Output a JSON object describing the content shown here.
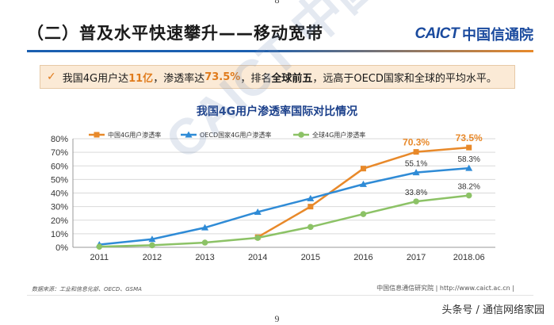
{
  "page": {
    "top_number": "8",
    "bottom_number": "9"
  },
  "header": {
    "title": "（二）普及水平快速攀升——移动宽带",
    "logo_en": "CAICT",
    "logo_cn": "中国信通院"
  },
  "highlight": {
    "check": "✓",
    "t1": "我国4G用户达",
    "n1": "11亿",
    "t2": "，渗透率达",
    "n2": "73.5%",
    "t3": "，排名",
    "b1": "全球前五",
    "t4": "，远高于OECD国家和全球的平均水平。"
  },
  "watermark": {
    "text": "CAICT 中国信通院"
  },
  "chart_data": {
    "type": "line",
    "title": "我国4G用户渗透率国际对比情况",
    "categories": [
      "2011",
      "2012",
      "2013",
      "2014",
      "2015",
      "2016",
      "2017",
      "2018.06"
    ],
    "y_ticks": [
      "0%",
      "10%",
      "20%",
      "30%",
      "40%",
      "50%",
      "60%",
      "70%",
      "80%"
    ],
    "ylim": [
      0,
      80
    ],
    "legend_position": "top-left",
    "series": [
      {
        "name": "中国4G用户渗透率",
        "color": "#e8892a",
        "marker": "square",
        "start_index": 3,
        "values": [
          null,
          null,
          null,
          7.5,
          30,
          58,
          70.3,
          73.5
        ],
        "labels": [
          null,
          null,
          null,
          null,
          null,
          null,
          "70.3%",
          "73.5%"
        ]
      },
      {
        "name": "OECD国家4G用户渗透率",
        "color": "#2f8bd6",
        "marker": "triangle",
        "start_index": 0,
        "values": [
          2,
          6,
          14.5,
          26,
          36,
          46.5,
          55.1,
          58.3
        ],
        "labels": [
          null,
          null,
          null,
          null,
          null,
          null,
          "55.1%",
          "58.3%"
        ]
      },
      {
        "name": "全球4G用户渗透率",
        "color": "#8cc266",
        "marker": "circle",
        "start_index": 0,
        "values": [
          0.5,
          1.5,
          3.5,
          7,
          15,
          24.5,
          33.8,
          38.2
        ],
        "labels": [
          null,
          null,
          null,
          null,
          null,
          null,
          "33.8%",
          "38.2%"
        ]
      }
    ]
  },
  "footer": {
    "source": "数据来源：工业和信息化部、OECD、GSMA",
    "org": "中国信息通信研究院  |  http://www.caict.ac.cn  |",
    "credit": "头条号 / 通信网络家园"
  }
}
